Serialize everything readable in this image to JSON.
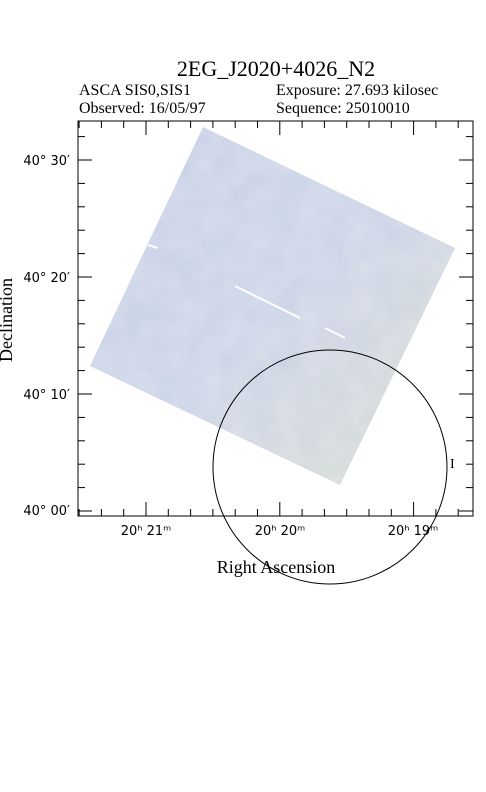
{
  "header": {
    "title": "2EG_J2020+4026_N2",
    "instrument": "ASCA SIS0,SIS1",
    "exposure": "Exposure: 27.693 kilosec",
    "observed": "Observed: 16/05/97",
    "sequence": "Sequence: 25010010"
  },
  "axes": {
    "x_label": "Right Ascension",
    "y_label": "Declination",
    "x_tick_labels": [
      "20ʰ 21ᵐ",
      "20ʰ 20ᵐ",
      "20ʰ 19ᵐ"
    ],
    "y_tick_labels": [
      "40° 30′",
      "40° 20′",
      "40° 10′",
      "40° 00′"
    ]
  },
  "annotations": {
    "source_marker": "I"
  }
}
